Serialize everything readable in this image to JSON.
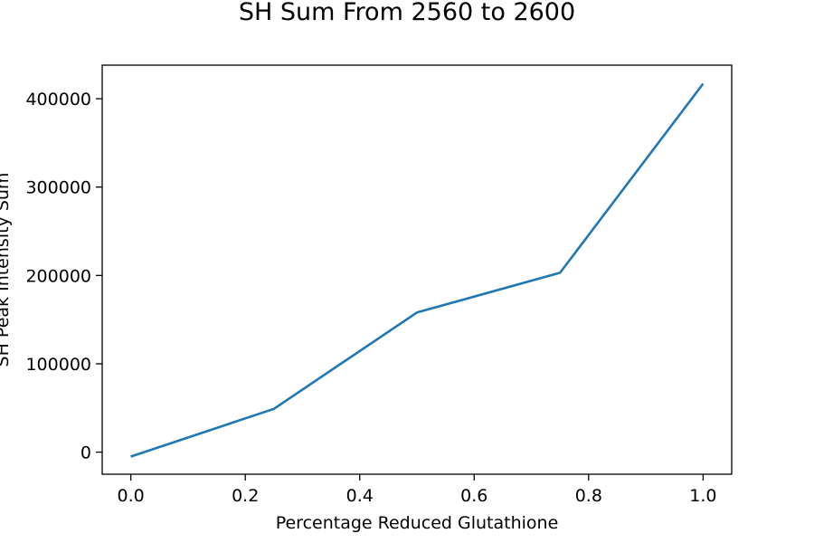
{
  "chart_data": {
    "type": "line",
    "title": "SH Sum From 2560 to 2600",
    "xlabel": "Percentage Reduced Glutathione",
    "ylabel": "SH Peak Intensity Sum",
    "xlim": [
      -0.05,
      1.05
    ],
    "ylim": [
      -25000,
      438000
    ],
    "xticks": [
      0.0,
      0.2,
      0.4,
      0.6,
      0.8,
      1.0
    ],
    "xtick_labels": [
      "0.0",
      "0.2",
      "0.4",
      "0.6",
      "0.8",
      "1.0"
    ],
    "yticks": [
      0,
      100000,
      200000,
      300000,
      400000
    ],
    "ytick_labels": [
      "0",
      "100000",
      "200000",
      "300000",
      "400000"
    ],
    "grid": false,
    "series": [
      {
        "color": "#1f77b4",
        "x": [
          0.0,
          0.25,
          0.5,
          0.75,
          1.0
        ],
        "y": [
          -5000,
          49000,
          158000,
          203000,
          417000
        ]
      }
    ]
  }
}
